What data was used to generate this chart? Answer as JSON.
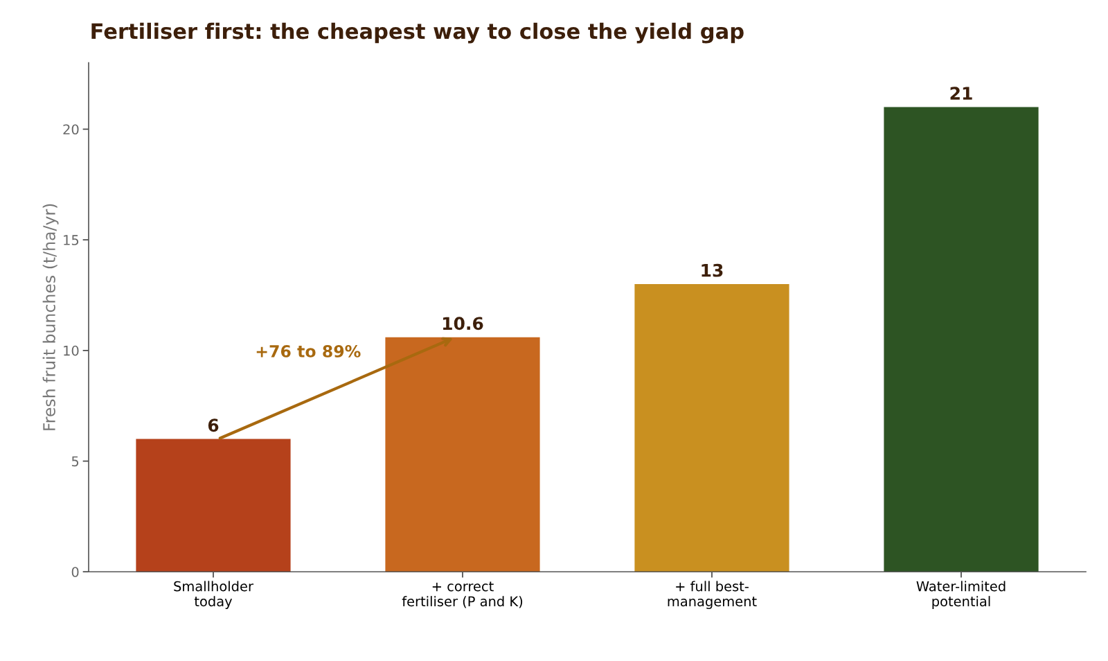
{
  "chart_data": {
    "type": "bar",
    "title": "Fertiliser first: the cheapest way to close the yield gap",
    "ylabel": "Fresh fruit bunches (t/ha/yr)",
    "categories": [
      "Smallholder\ntoday",
      "+ correct\nfertiliser (P and K)",
      "+ full best-\nmanagement",
      "Water-limited\npotential"
    ],
    "values": [
      6,
      10.6,
      13,
      21
    ],
    "colors": [
      "#b5411b",
      "#c8681f",
      "#c99020",
      "#2d5423"
    ],
    "ylim": [
      0,
      23
    ],
    "yticks": [
      0,
      5,
      10,
      15,
      20
    ],
    "grid": false,
    "data_labels": true,
    "annotations": [
      "+76 to 89%"
    ]
  }
}
